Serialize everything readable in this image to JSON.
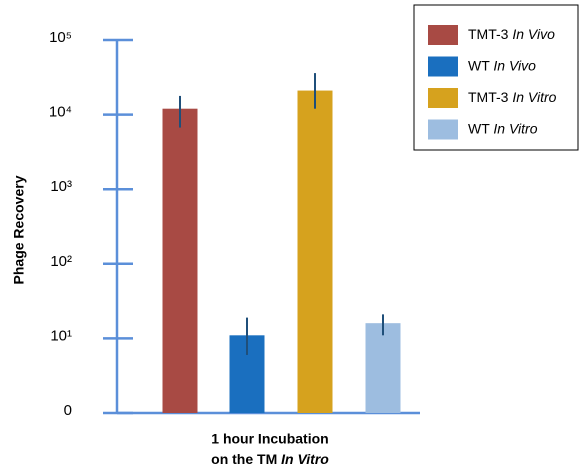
{
  "chart_data": {
    "type": "bar",
    "ylabel": "Phage Recovery",
    "xlabel": [
      "1 hour Incubation",
      "on the TM In Vitro"
    ],
    "log_scale": true,
    "ylim": [
      1,
      100000
    ],
    "yticks": [
      {
        "value": 1,
        "label": "0"
      },
      {
        "value": 10,
        "label": "10¹"
      },
      {
        "value": 100,
        "label": "10²"
      },
      {
        "value": 1000,
        "label": "10³"
      },
      {
        "value": 10000,
        "label": "10⁴"
      },
      {
        "value": 100000,
        "label": "10⁵"
      }
    ],
    "axis_color": "#5b8fd9",
    "legend": "top-right",
    "series": [
      {
        "name": "TMT-3 In Vivo",
        "color": "#a84a44",
        "values": [
          12000
        ],
        "error_low": [
          6700
        ],
        "error_high": [
          17800
        ]
      },
      {
        "name": "WT In Vivo",
        "color": "#1a6fbf",
        "values": [
          11
        ],
        "error_low": [
          6
        ],
        "error_high": [
          19
        ]
      },
      {
        "name": "TMT-3 In Vitro",
        "color": "#d6a21e",
        "values": [
          21000
        ],
        "error_low": [
          12000
        ],
        "error_high": [
          36000
        ]
      },
      {
        "name": "WT In Vitro",
        "color": "#9dbde0",
        "values": [
          16
        ],
        "error_low": [
          11
        ],
        "error_high": [
          21
        ]
      }
    ]
  }
}
